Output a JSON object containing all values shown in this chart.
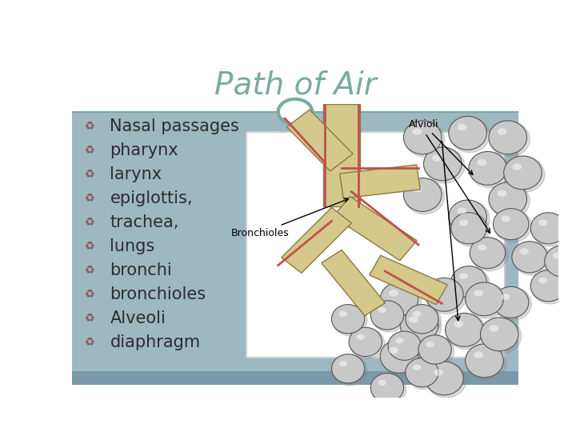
{
  "title": "Path of Air",
  "title_color": "#7aab9e",
  "title_fontsize": 28,
  "title_font": "Georgia",
  "bg_top": "#ffffff",
  "bg_bottom": "#9eb8c2",
  "content_bg": "#9eb8c2",
  "bullet_items": [
    "Nasal passages",
    "pharynx",
    "larynx",
    "epiglottis,",
    "trachea,",
    "lungs",
    "bronchi",
    "bronchioles",
    "Alveoli",
    "diaphragm"
  ],
  "bullet_color": "#8b4a4a",
  "text_color": "#2c2c2c",
  "text_fontsize": 15,
  "divider_color": "#7aab9e",
  "circle_color": "#7aab9e",
  "image_box_color": "#d4cdb5"
}
